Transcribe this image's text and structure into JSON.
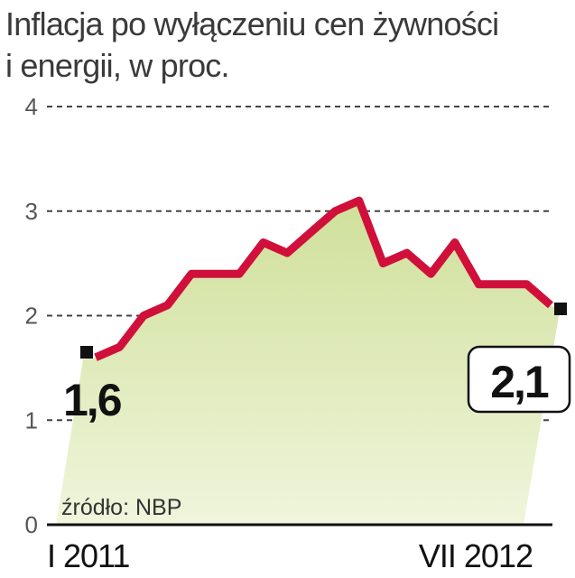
{
  "chart_data": {
    "type": "area",
    "title": "Inflacja po wyłączeniu cen żywności i energii, w proc.",
    "title_lines": [
      "Inflacja po wyłączeniu cen żywności",
      "i energii, w proc."
    ],
    "x_labels": [
      "I 2011",
      "VII 2012"
    ],
    "y_ticks": [
      "0",
      "1",
      "2",
      "3",
      "4"
    ],
    "ylim": [
      0,
      4
    ],
    "grid": true,
    "source": "źródło: NBP",
    "series": [
      {
        "values": [
          1.6,
          1.7,
          2.0,
          2.1,
          2.4,
          2.4,
          2.4,
          2.7,
          2.6,
          2.8,
          3.0,
          3.1,
          2.5,
          2.6,
          2.4,
          2.7,
          2.3,
          2.3,
          2.3,
          2.1
        ],
        "color": "#d0103a",
        "fill_top": "#cfe09a",
        "fill_bottom": "#f0f5dc"
      }
    ],
    "annotations": {
      "start_label": "1,6",
      "end_label": "2,1"
    }
  }
}
